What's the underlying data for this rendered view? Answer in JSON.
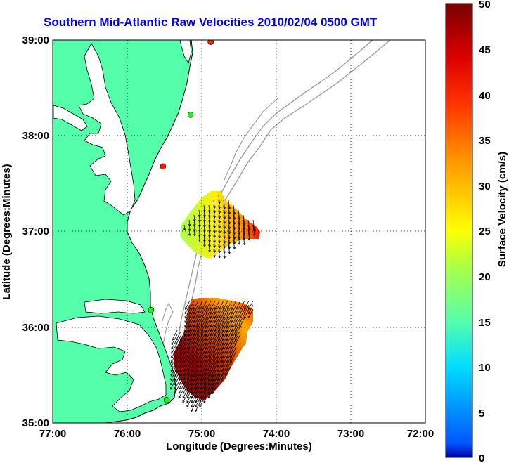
{
  "title": "Southern Mid-Atlantic Raw Velocities 2010/02/04 0500 GMT",
  "map": {
    "xlabel": "Longitude (Degrees:Minutes)",
    "ylabel": "Latitude (Degrees:Minutes)",
    "x_ticks": [
      "77:00",
      "76:00",
      "75:00",
      "74:00",
      "73:00",
      "72:00"
    ],
    "y_ticks": [
      "39:00",
      "38:00",
      "37:00",
      "36:00",
      "35:00"
    ],
    "lon_range": [
      -77,
      -72
    ],
    "lat_range": [
      35,
      39
    ],
    "grid": "dotted",
    "land_color": "#55ffaa",
    "coast_color": "#000000",
    "bathymetry_color": "#999999"
  },
  "colorbar": {
    "label": "Surface Velocity (cm/s)",
    "ticks": [
      "50",
      "45",
      "40",
      "35",
      "30",
      "25",
      "20",
      "15",
      "10",
      "5",
      "0"
    ],
    "range": [
      0,
      50
    ],
    "colormap": "jet"
  },
  "stations": [
    {
      "lon": -74.88,
      "lat": 38.98,
      "color": "#ff2200"
    },
    {
      "lon": -75.15,
      "lat": 38.22,
      "color": "#22ee22"
    },
    {
      "lon": -75.52,
      "lat": 37.68,
      "color": "#ff2200"
    },
    {
      "lon": -75.68,
      "lat": 36.18,
      "color": "#22ee22"
    },
    {
      "lon": -75.47,
      "lat": 35.24,
      "color": "#22ee22"
    }
  ]
}
